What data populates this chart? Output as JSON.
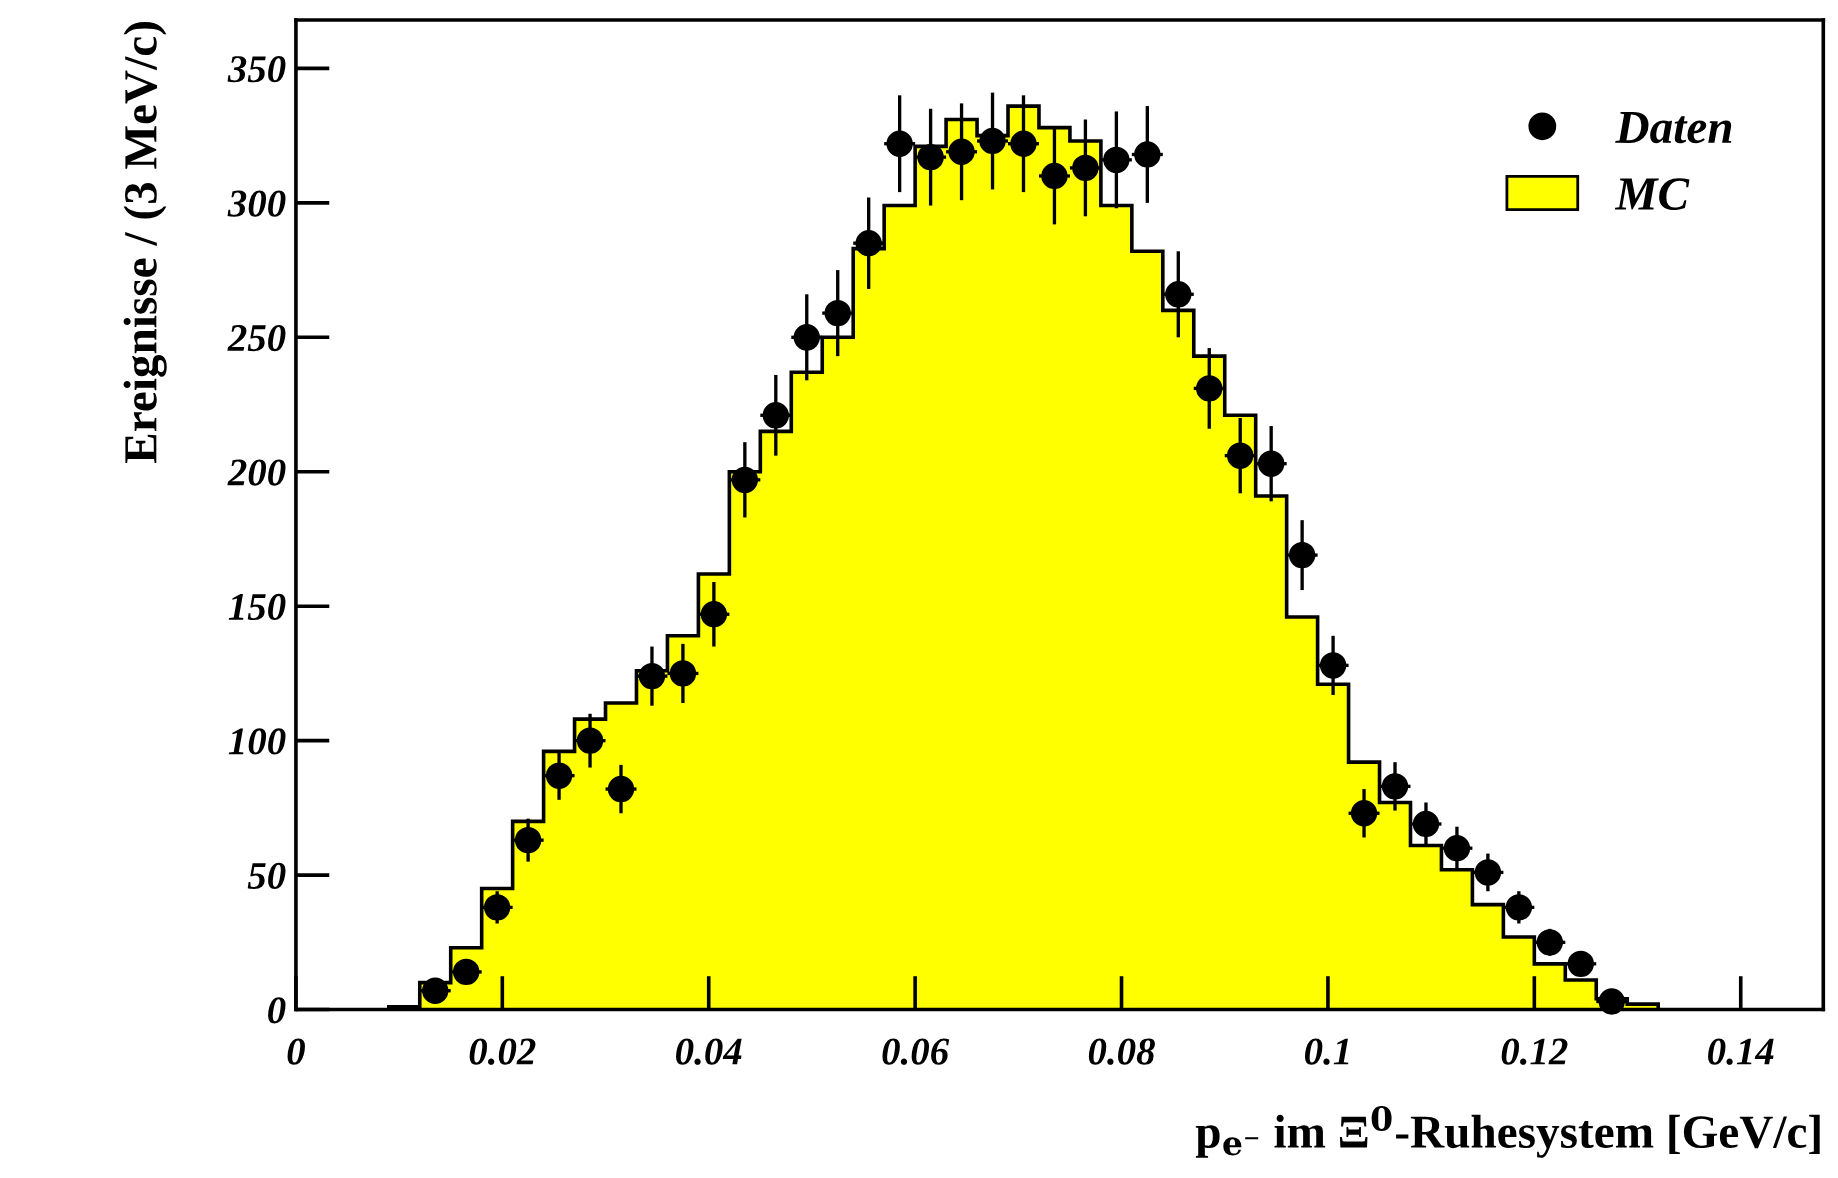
{
  "chart_data": {
    "type": "histogram",
    "xlabel": "p$_{e⁻}$ im Ξ$^{0}$-Ruhesystem [GeV/c]",
    "ylabel": "Ereignisse / (3 MeV/c)",
    "bins": [
      0.009,
      0.012,
      0.015,
      0.018,
      0.021,
      0.024,
      0.027,
      0.03,
      0.033,
      0.036,
      0.039,
      0.042,
      0.045,
      0.048,
      0.051,
      0.054,
      0.057,
      0.06,
      0.063,
      0.066,
      0.069,
      0.072,
      0.075,
      0.078,
      0.081,
      0.084,
      0.087,
      0.09,
      0.093,
      0.096,
      0.099,
      0.102,
      0.105,
      0.108,
      0.111,
      0.114,
      0.117,
      0.12,
      0.123,
      0.126,
      0.129,
      0.132
    ],
    "series": [
      {
        "name": "MC",
        "color": "#ffff00",
        "values": [
          1,
          10,
          23,
          45,
          70,
          96,
          108,
          114,
          126,
          139,
          162,
          200,
          215,
          237,
          250,
          283,
          299,
          321,
          331,
          325,
          336,
          328,
          323,
          299,
          282,
          260,
          243,
          221,
          191,
          146,
          121,
          92,
          77,
          61,
          52,
          39,
          27,
          17,
          11,
          4,
          2
        ]
      },
      {
        "name": "Daten",
        "type": "scatter",
        "color": "#000000",
        "marker": "circle",
        "x": [
          0.0135,
          0.0165,
          0.0195,
          0.0225,
          0.0255,
          0.0285,
          0.0315,
          0.0345,
          0.0375,
          0.0405,
          0.0435,
          0.0465,
          0.0495,
          0.0525,
          0.0555,
          0.0585,
          0.0615,
          0.0645,
          0.0675,
          0.0705,
          0.0735,
          0.0765,
          0.0795,
          0.0825,
          0.0855,
          0.0885,
          0.0915,
          0.0945,
          0.0975,
          0.1005,
          0.1035,
          0.1065,
          0.1095,
          0.1125,
          0.1155,
          0.1185,
          0.1215,
          0.1245,
          0.1275
        ],
        "values": [
          7,
          14,
          38,
          63,
          87,
          100,
          82,
          124,
          125,
          147,
          197,
          221,
          250,
          259,
          285,
          322,
          317,
          319,
          323,
          322,
          310,
          313,
          316,
          318,
          266,
          231,
          206,
          203,
          169,
          128,
          73,
          83,
          69,
          60,
          51,
          38,
          25,
          17,
          3
        ],
        "errors": [
          3,
          4,
          6,
          8,
          9,
          10,
          9,
          11,
          11,
          12,
          14,
          15,
          16,
          16,
          17,
          18,
          18,
          18,
          18,
          18,
          18,
          18,
          18,
          18,
          16,
          15,
          14,
          14,
          13,
          11,
          9,
          9,
          8,
          8,
          7,
          6,
          5,
          4,
          2
        ],
        "xerrors": [
          0.0015,
          0.0015,
          0.0015,
          0.0015,
          0.0015,
          0.0015,
          0.0015,
          0.0015,
          0.0015,
          0.0015,
          0.0015,
          0.0015,
          0.0015,
          0.0015,
          0.0015,
          0.0015,
          0.0015,
          0.0015,
          0.0015,
          0.0015,
          0.0015,
          0.0015,
          0.0015,
          0.0015,
          0.0015,
          0.0015,
          0.0015,
          0.0015,
          0.0015,
          0.0015,
          0.0015,
          0.0015,
          0.0015,
          0.0015,
          0.0015,
          0.0015,
          0.0015,
          0.0015,
          0.0015
        ]
      }
    ],
    "xlim": [
      0,
      0.148
    ],
    "xticks": [
      0,
      0.02,
      0.04,
      0.06,
      0.08,
      0.1,
      0.12,
      0.14
    ],
    "ylim": [
      0,
      368
    ],
    "yticks": [
      0,
      50,
      100,
      150,
      200,
      250,
      300,
      350
    ],
    "grid": false,
    "legend": "top right"
  }
}
